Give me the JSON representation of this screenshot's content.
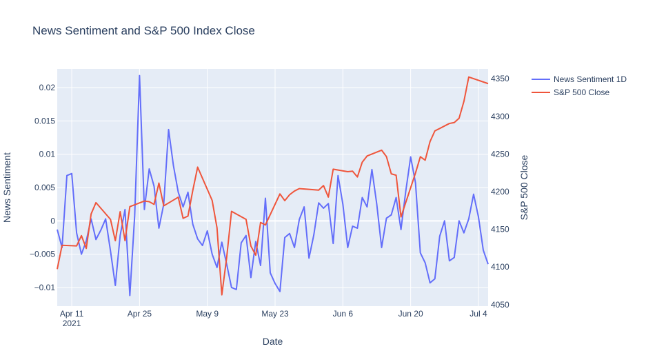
{
  "chart_data": {
    "type": "line",
    "title": "News Sentiment and S&P 500 Index Close",
    "xlabel": "Date",
    "ylabel_left": "News Sentiment",
    "ylabel_right": "S&P 500 Close",
    "x_range": [
      "2021-04-08",
      "2021-07-06"
    ],
    "ylim_left": [
      -0.0128,
      0.0228
    ],
    "ylim_right": [
      4048,
      4363
    ],
    "x_tick_labels": [
      {
        "date": "2021-04-11",
        "label": "Apr 11",
        "sublabel": "2021"
      },
      {
        "date": "2021-04-25",
        "label": "Apr 25"
      },
      {
        "date": "2021-05-09",
        "label": "May 9"
      },
      {
        "date": "2021-05-23",
        "label": "May 23"
      },
      {
        "date": "2021-06-06",
        "label": "Jun 6"
      },
      {
        "date": "2021-06-20",
        "label": "Jun 20"
      },
      {
        "date": "2021-07-04",
        "label": "Jul 4"
      }
    ],
    "y_ticks_left": [
      {
        "value": 0.02,
        "label": "0.02"
      },
      {
        "value": 0.015,
        "label": "0.015"
      },
      {
        "value": 0.01,
        "label": "0.01"
      },
      {
        "value": 0.005,
        "label": "0.005"
      },
      {
        "value": 0,
        "label": "0"
      },
      {
        "value": -0.005,
        "label": "−0.005"
      },
      {
        "value": -0.01,
        "label": "−0.01"
      }
    ],
    "y_ticks_right": [
      {
        "value": 4350,
        "label": "4350"
      },
      {
        "value": 4300,
        "label": "4300"
      },
      {
        "value": 4250,
        "label": "4250"
      },
      {
        "value": 4200,
        "label": "4200"
      },
      {
        "value": 4150,
        "label": "4150"
      },
      {
        "value": 4100,
        "label": "4100"
      },
      {
        "value": 4050,
        "label": "4050"
      }
    ],
    "grid": true,
    "legend_position": "top-right",
    "series": [
      {
        "name": "News Sentiment 1D",
        "axis": "left",
        "color": "#636efa",
        "x": [
          "2021-04-08",
          "2021-04-09",
          "2021-04-10",
          "2021-04-11",
          "2021-04-12",
          "2021-04-13",
          "2021-04-14",
          "2021-04-15",
          "2021-04-16",
          "2021-04-17",
          "2021-04-18",
          "2021-04-19",
          "2021-04-20",
          "2021-04-21",
          "2021-04-22",
          "2021-04-23",
          "2021-04-24",
          "2021-04-25",
          "2021-04-26",
          "2021-04-27",
          "2021-04-28",
          "2021-04-29",
          "2021-04-30",
          "2021-05-01",
          "2021-05-02",
          "2021-05-03",
          "2021-05-04",
          "2021-05-05",
          "2021-05-06",
          "2021-05-07",
          "2021-05-08",
          "2021-05-09",
          "2021-05-10",
          "2021-05-11",
          "2021-05-12",
          "2021-05-13",
          "2021-05-14",
          "2021-05-15",
          "2021-05-16",
          "2021-05-17",
          "2021-05-18",
          "2021-05-19",
          "2021-05-20",
          "2021-05-21",
          "2021-05-22",
          "2021-05-23",
          "2021-05-24",
          "2021-05-25",
          "2021-05-26",
          "2021-05-27",
          "2021-05-28",
          "2021-05-29",
          "2021-05-30",
          "2021-05-31",
          "2021-06-01",
          "2021-06-02",
          "2021-06-03",
          "2021-06-04",
          "2021-06-05",
          "2021-06-06",
          "2021-06-07",
          "2021-06-08",
          "2021-06-09",
          "2021-06-10",
          "2021-06-11",
          "2021-06-12",
          "2021-06-13",
          "2021-06-14",
          "2021-06-15",
          "2021-06-16",
          "2021-06-17",
          "2021-06-18",
          "2021-06-19",
          "2021-06-20",
          "2021-06-21",
          "2021-06-22",
          "2021-06-23",
          "2021-06-24",
          "2021-06-25",
          "2021-06-26",
          "2021-06-27",
          "2021-06-28",
          "2021-06-29",
          "2021-06-30",
          "2021-07-01",
          "2021-07-02",
          "2021-07-03",
          "2021-07-04",
          "2021-07-05",
          "2021-07-06"
        ],
        "values": [
          -0.0013,
          -0.004,
          0.0068,
          0.0071,
          -0.0018,
          -0.005,
          -0.003,
          0.0003,
          -0.0028,
          -0.0014,
          0.0003,
          -0.0045,
          -0.0097,
          -0.0022,
          0.0017,
          -0.0112,
          0.0008,
          0.0218,
          0.0017,
          0.0078,
          0.0052,
          -0.0011,
          0.0025,
          0.0137,
          0.0083,
          0.0043,
          0.0021,
          0.0043,
          -0.0005,
          -0.0027,
          -0.0037,
          -0.0015,
          -0.005,
          -0.007,
          -0.0032,
          -0.0065,
          -0.01,
          -0.0103,
          -0.0033,
          -0.0022,
          -0.0085,
          -0.0031,
          -0.0067,
          0.0034,
          -0.0078,
          -0.0094,
          -0.0106,
          -0.0025,
          -0.0019,
          -0.004,
          0.0002,
          0.0021,
          -0.0056,
          -0.0021,
          0.0027,
          0.0019,
          0.0026,
          -0.0034,
          0.0068,
          0.0025,
          -0.004,
          -0.0008,
          -0.0011,
          0.0035,
          0.0021,
          0.0077,
          0.0025,
          -0.004,
          0.0004,
          0.0009,
          0.0035,
          -0.0013,
          0.0045,
          0.0096,
          0.0057,
          -0.0048,
          -0.0063,
          -0.0093,
          -0.0087,
          -0.0023,
          0.0,
          -0.006,
          -0.0055,
          0.0,
          -0.0018,
          0.0003,
          0.004,
          0.0006,
          -0.0044,
          -0.0065
        ]
      },
      {
        "name": "S&P 500 Close",
        "axis": "right",
        "color": "#ef553b",
        "x": [
          "2021-04-08",
          "2021-04-09",
          "2021-04-12",
          "2021-04-13",
          "2021-04-14",
          "2021-04-15",
          "2021-04-16",
          "2021-04-19",
          "2021-04-20",
          "2021-04-21",
          "2021-04-22",
          "2021-04-23",
          "2021-04-26",
          "2021-04-27",
          "2021-04-28",
          "2021-04-29",
          "2021-04-30",
          "2021-05-03",
          "2021-05-04",
          "2021-05-05",
          "2021-05-06",
          "2021-05-07",
          "2021-05-10",
          "2021-05-11",
          "2021-05-12",
          "2021-05-13",
          "2021-05-14",
          "2021-05-17",
          "2021-05-18",
          "2021-05-19",
          "2021-05-20",
          "2021-05-21",
          "2021-05-24",
          "2021-05-25",
          "2021-05-26",
          "2021-05-27",
          "2021-05-28",
          "2021-06-01",
          "2021-06-02",
          "2021-06-03",
          "2021-06-04",
          "2021-06-07",
          "2021-06-08",
          "2021-06-09",
          "2021-06-10",
          "2021-06-11",
          "2021-06-14",
          "2021-06-15",
          "2021-06-16",
          "2021-06-17",
          "2021-06-18",
          "2021-06-21",
          "2021-06-22",
          "2021-06-23",
          "2021-06-24",
          "2021-06-25",
          "2021-06-28",
          "2021-06-29",
          "2021-06-30",
          "2021-07-01",
          "2021-07-02",
          "2021-07-06"
        ],
        "values": [
          4097.17,
          4128.8,
          4127.99,
          4141.59,
          4124.66,
          4170.42,
          4185.47,
          4163.26,
          4134.94,
          4173.42,
          4134.98,
          4180.17,
          4187.62,
          4186.72,
          4183.18,
          4211.47,
          4181.17,
          4192.66,
          4164.66,
          4167.59,
          4201.62,
          4232.6,
          4188.43,
          4152.1,
          4063.04,
          4112.5,
          4173.85,
          4163.29,
          4127.83,
          4115.68,
          4159.12,
          4155.86,
          4197.05,
          4188.13,
          4195.99,
          4200.88,
          4204.11,
          4202.04,
          4208.12,
          4192.85,
          4229.89,
          4226.52,
          4227.26,
          4219.55,
          4239.18,
          4247.44,
          4255.15,
          4246.59,
          4223.7,
          4221.86,
          4166.45,
          4224.79,
          4246.44,
          4241.84,
          4266.49,
          4280.7,
          4290.61,
          4291.8,
          4297.5,
          4319.94,
          4352.34,
          4343.54
        ]
      }
    ]
  }
}
